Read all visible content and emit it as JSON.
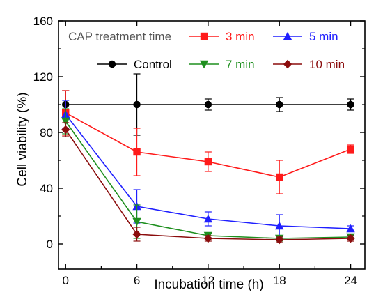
{
  "chart_data": {
    "type": "line",
    "title": "",
    "xlabel": "Incubation time (h)",
    "ylabel": "Cell viability (%)",
    "xlim": [
      -0.6,
      25.2
    ],
    "ylim": [
      -18,
      160
    ],
    "x": [
      0,
      6,
      12,
      18,
      24
    ],
    "xticks": [
      0,
      6,
      12,
      18,
      24
    ],
    "yticks": [
      0,
      40,
      80,
      120,
      160
    ],
    "grid": false,
    "legend_title": "CAP treatment time",
    "legend_position": "top",
    "series": [
      {
        "name": "Control",
        "color": "#000000",
        "marker": "circle",
        "values": [
          100,
          100,
          100,
          100,
          100
        ],
        "errors": [
          10,
          22,
          4,
          5,
          4
        ]
      },
      {
        "name": "3 min",
        "color": "#ff1a1a",
        "marker": "square",
        "values": [
          94,
          66,
          59,
          48,
          68
        ],
        "errors": [
          16,
          17,
          7,
          12,
          3
        ]
      },
      {
        "name": "5 min",
        "color": "#1f1fff",
        "marker": "triangle-up",
        "values": [
          93,
          27,
          18,
          13,
          11
        ],
        "errors": [
          10,
          12,
          5,
          8,
          2
        ]
      },
      {
        "name": "7 min",
        "color": "#1e8f1e",
        "marker": "triangle-down",
        "values": [
          88,
          16,
          6,
          4,
          5
        ],
        "errors": [
          9,
          12,
          2,
          2,
          2
        ]
      },
      {
        "name": "10 min",
        "color": "#8b0d0d",
        "marker": "diamond",
        "values": [
          82,
          7,
          4,
          3,
          4
        ],
        "errors": [
          5,
          5,
          2,
          2,
          2
        ]
      }
    ]
  }
}
